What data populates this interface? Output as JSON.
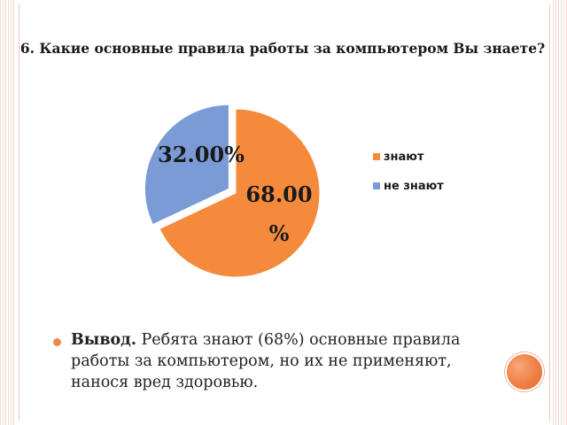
{
  "chart_data": {
    "type": "pie",
    "title": "6. Какие основные правила работы за компьютером Вы знаете?",
    "slices": [
      {
        "label": "знают",
        "value": 68.0,
        "value_label": "68.00%",
        "color": "#f58a3c"
      },
      {
        "label": "не знают",
        "value": 32.0,
        "value_label": "32.00%",
        "color": "#7b9bd6"
      }
    ],
    "legend_position": "right",
    "start_angle_deg": 0,
    "direction": "clockwise",
    "exploded": "не знают"
  },
  "conclusion": {
    "label": "Вывод.",
    "text": " Ребята знают (68%) основные правила работы за компьютером, но их не применяют, нанося вред здоровью."
  },
  "colors": {
    "accent": "#f0874c",
    "stripe": "#f3d9cf"
  }
}
